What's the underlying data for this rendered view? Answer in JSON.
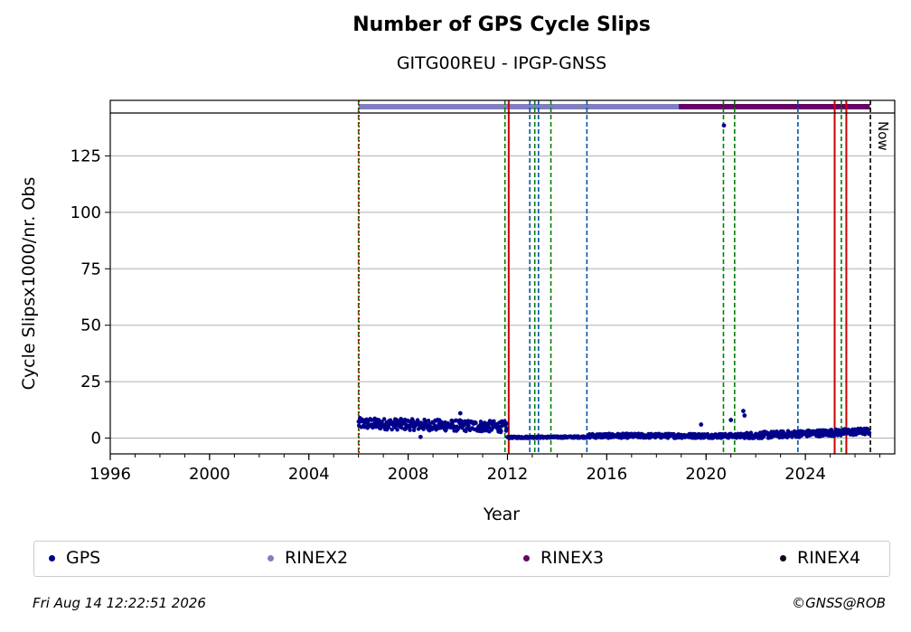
{
  "chart_data": {
    "type": "scatter",
    "title": "Number of GPS Cycle Slips",
    "subtitle": "GITG00REU - IPGP-GNSS",
    "xlabel": "Year",
    "ylabel": "Cycle Slipsx1000/nr. Obs",
    "xlim": [
      1996,
      2027.6
    ],
    "ylim": [
      -7,
      144
    ],
    "x_ticks": [
      "1996",
      "2000",
      "2004",
      "2008",
      "2012",
      "2016",
      "2020",
      "2024"
    ],
    "y_ticks": [
      "0",
      "25",
      "50",
      "75",
      "100",
      "125"
    ],
    "grid": "horizontal",
    "now_label": "Now",
    "now_x": 2026.62,
    "series": [
      {
        "name": "GPS",
        "color": "#00008b",
        "segments": [
          {
            "x_start": 2006.0,
            "x_end": 2012.0,
            "y_start": 6.5,
            "y_end": 5.0,
            "spread": 2.5
          },
          {
            "x_start": 2012.0,
            "x_end": 2015.3,
            "y_start": 0.3,
            "y_end": 0.5,
            "spread": 0.4
          },
          {
            "x_start": 2015.3,
            "x_end": 2021.5,
            "y_start": 1.0,
            "y_end": 1.0,
            "spread": 1.0
          },
          {
            "x_start": 2021.5,
            "x_end": 2026.6,
            "y_start": 1.0,
            "y_end": 3.0,
            "spread": 1.5
          }
        ],
        "outliers": [
          [
            2020.72,
            138.5
          ],
          [
            2010.1,
            11
          ],
          [
            2019.8,
            6
          ],
          [
            2021.0,
            8
          ],
          [
            2021.5,
            12
          ],
          [
            2021.55,
            10
          ],
          [
            2008.5,
            0.5
          ]
        ]
      }
    ],
    "availability_bars": [
      {
        "name": "RINEX2",
        "color": "#7f7fbf",
        "x_start": 2006.0,
        "x_end": 2018.9
      },
      {
        "name": "RINEX3",
        "color": "#660066",
        "x_start": 2018.9,
        "x_end": 2026.6
      }
    ],
    "vertical_lines": [
      {
        "x": 2006.0,
        "color": "#008000",
        "style": "dashed"
      },
      {
        "x": 2006.02,
        "color": "#cc0000",
        "style": "dotted"
      },
      {
        "x": 2011.9,
        "color": "#008000",
        "style": "dashed"
      },
      {
        "x": 2012.05,
        "color": "#cc0000",
        "style": "solid"
      },
      {
        "x": 2012.9,
        "color": "#0055aa",
        "style": "dashed"
      },
      {
        "x": 2013.1,
        "color": "#008000",
        "style": "dashed"
      },
      {
        "x": 2013.25,
        "color": "#0055aa",
        "style": "dashed"
      },
      {
        "x": 2013.75,
        "color": "#008000",
        "style": "dashed"
      },
      {
        "x": 2015.2,
        "color": "#0055aa",
        "style": "dashed"
      },
      {
        "x": 2020.7,
        "color": "#008000",
        "style": "dashed"
      },
      {
        "x": 2021.15,
        "color": "#008000",
        "style": "dashed"
      },
      {
        "x": 2023.7,
        "color": "#0055aa",
        "style": "dashed"
      },
      {
        "x": 2025.18,
        "color": "#cc0000",
        "style": "solid"
      },
      {
        "x": 2025.45,
        "color": "#008000",
        "style": "dashed"
      },
      {
        "x": 2025.65,
        "color": "#cc0000",
        "style": "solid"
      },
      {
        "x": 2026.62,
        "color": "#000000",
        "style": "dashed"
      }
    ]
  },
  "legend": {
    "items": [
      {
        "label": "GPS",
        "color": "#00008b"
      },
      {
        "label": "RINEX2",
        "color": "#7f7fbf"
      },
      {
        "label": "RINEX3",
        "color": "#660066"
      },
      {
        "label": "RINEX4",
        "color": "#1a0020"
      }
    ]
  },
  "footer": {
    "timestamp": "Fri Aug 14 12:22:51 2026",
    "copyright": "©GNSS@ROB"
  }
}
